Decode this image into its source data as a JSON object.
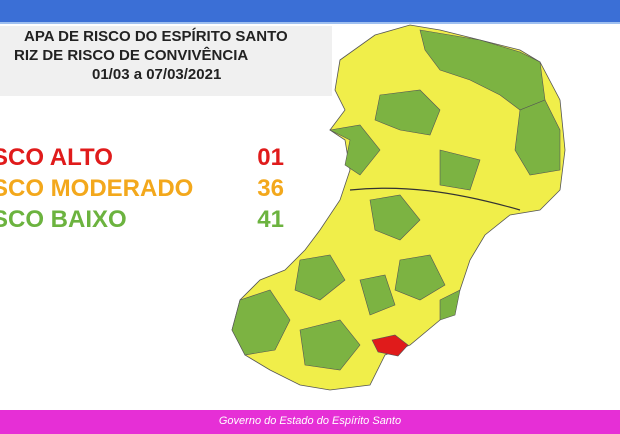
{
  "header": {
    "title_line1": "APA DE RISCO DO ESPÍRITO SANTO",
    "title_line2": "RIZ DE RISCO DE CONVIVÊNCIA",
    "period": "01/03 a 07/03/2021"
  },
  "legend": [
    {
      "label": "SCO ALTO",
      "count": "01",
      "color": "#e01b1b"
    },
    {
      "label": "SCO MODERADO",
      "count": "36",
      "color": "#f3a81c"
    },
    {
      "label": "SCO BAIXO",
      "count": "41",
      "color": "#6cb33f"
    }
  ],
  "footer": "Governo do Estado do Espírito Santo"
}
